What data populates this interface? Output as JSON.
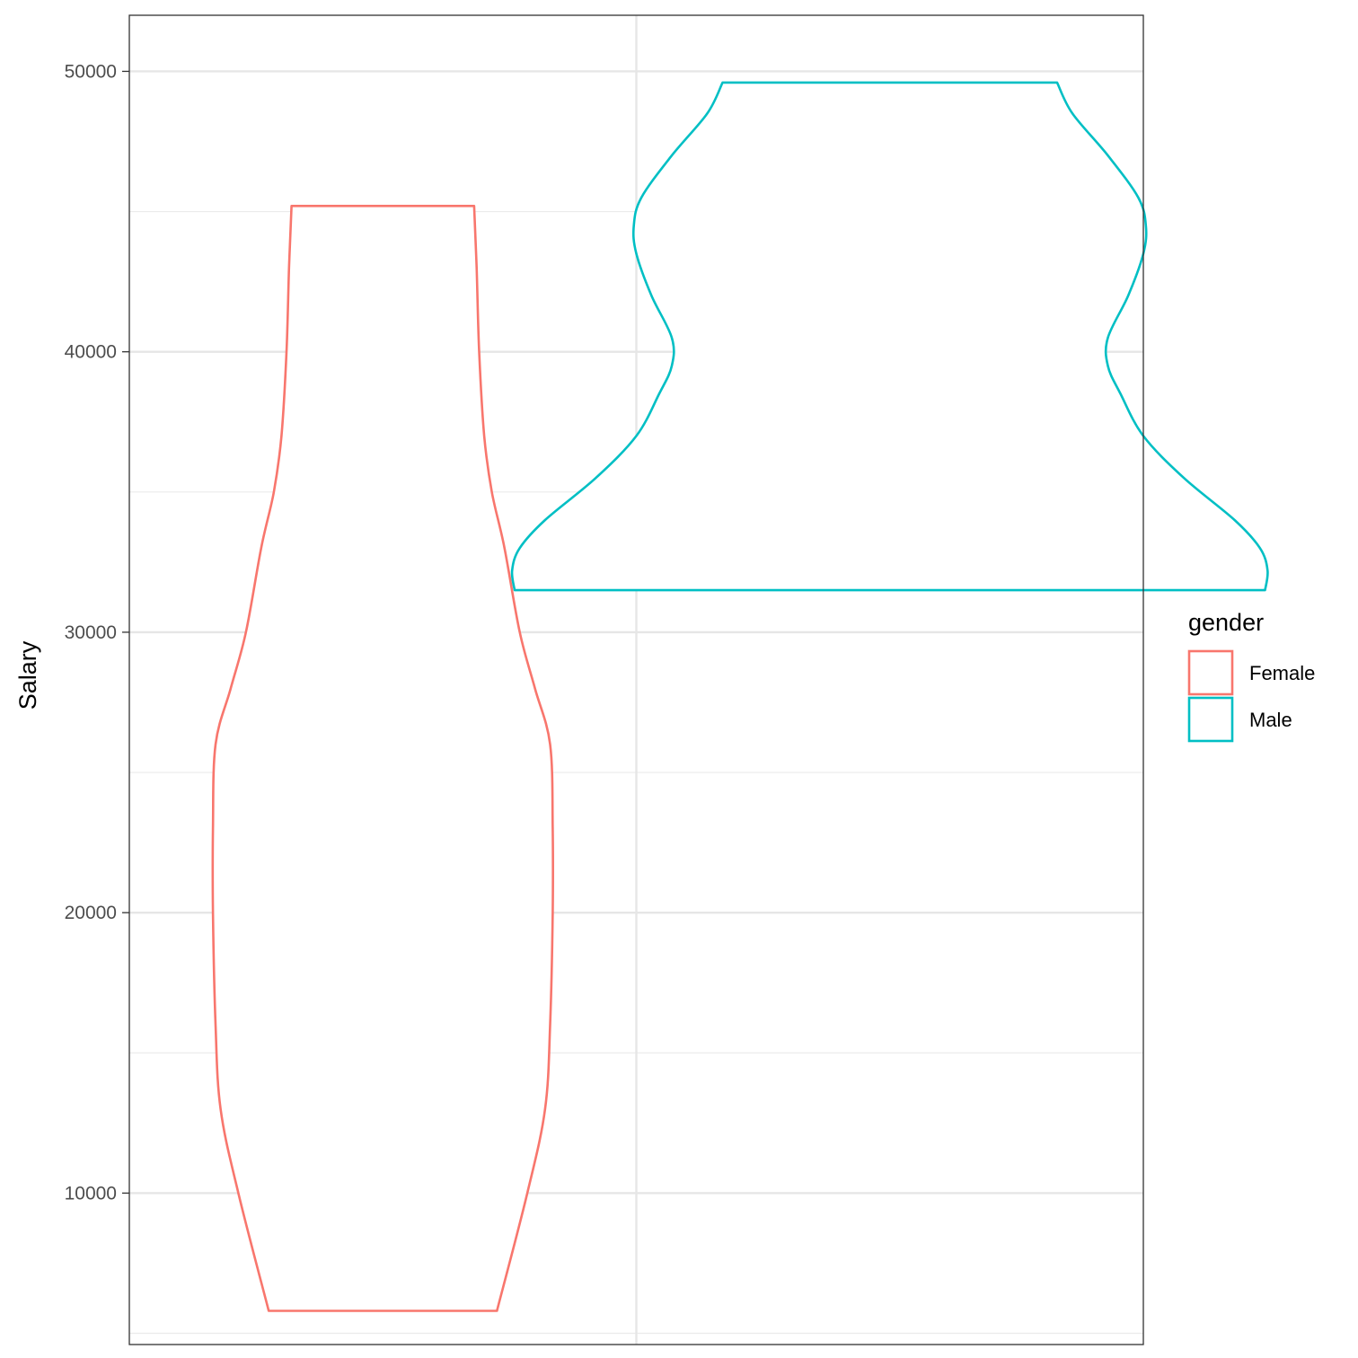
{
  "chart_data": {
    "type": "violin",
    "xlabel": "",
    "ylabel": "Salary",
    "ylim": [
      4600,
      52000
    ],
    "yticks": [
      10000,
      20000,
      30000,
      40000,
      50000
    ],
    "ytick_labels": [
      "10000",
      "20000",
      "30000",
      "40000",
      "50000"
    ],
    "grid": true,
    "legend": {
      "title": "gender",
      "position": "right"
    },
    "series": [
      {
        "name": "Female",
        "color": "#f8766d",
        "x_position": 1,
        "min": 5800,
        "max": 45200,
        "profile": [
          [
            5800,
            0.225
          ],
          [
            10000,
            0.285
          ],
          [
            13000,
            0.32
          ],
          [
            16000,
            0.33
          ],
          [
            20000,
            0.335
          ],
          [
            23000,
            0.335
          ],
          [
            26000,
            0.33
          ],
          [
            28000,
            0.3
          ],
          [
            30000,
            0.27
          ],
          [
            33000,
            0.24
          ],
          [
            35000,
            0.215
          ],
          [
            37000,
            0.2
          ],
          [
            40000,
            0.19
          ],
          [
            43000,
            0.185
          ],
          [
            45200,
            0.18
          ]
        ]
      },
      {
        "name": "Male",
        "color": "#00bfc4",
        "x_position": 2,
        "min": 31500,
        "max": 49600,
        "profile": [
          [
            31500,
            0.74
          ],
          [
            32200,
            0.745
          ],
          [
            33000,
            0.73
          ],
          [
            34000,
            0.68
          ],
          [
            35500,
            0.58
          ],
          [
            37000,
            0.5
          ],
          [
            38500,
            0.455
          ],
          [
            39500,
            0.43
          ],
          [
            40500,
            0.43
          ],
          [
            42000,
            0.47
          ],
          [
            43500,
            0.5
          ],
          [
            44500,
            0.505
          ],
          [
            45500,
            0.49
          ],
          [
            47000,
            0.43
          ],
          [
            48500,
            0.36
          ],
          [
            49600,
            0.33
          ]
        ]
      }
    ]
  }
}
